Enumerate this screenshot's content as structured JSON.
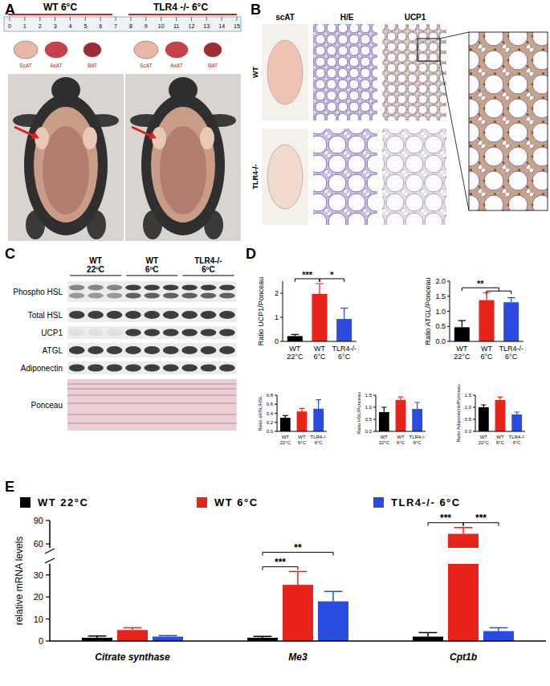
{
  "figure": {
    "panel_labels": [
      "A",
      "B",
      "C",
      "D",
      "E"
    ]
  },
  "panel_a": {
    "headers": [
      "WT 6°C",
      "TLR4 -/- 6°C"
    ],
    "ruler": [
      0,
      1,
      2,
      3,
      4,
      5,
      6,
      7,
      8,
      9,
      10,
      11,
      12,
      13,
      14,
      15
    ],
    "tissues": [
      "ScAT",
      "AxAT",
      "BAT"
    ]
  },
  "panel_b": {
    "columns": [
      "scAT",
      "H/E",
      "UCP1"
    ],
    "rows": [
      "WT",
      "TLR4-/-"
    ]
  },
  "panel_c": {
    "groups": [
      "WT 22ºC",
      "WT 6ºC",
      "TLR4-/- 6ºC"
    ],
    "rows": [
      "Phospho HSL",
      "Total HSL",
      "UCP1",
      "ATGL",
      "Adiponectin",
      "Ponceau"
    ]
  },
  "chart_data": [
    {
      "type": "bar",
      "ylabel": "Ratio UCP1/Ponceau",
      "categories": [
        "WT 22°C",
        "WT 6°C",
        "TLR4-/- 6°C"
      ],
      "values": [
        0.22,
        1.97,
        0.93
      ],
      "errors": [
        0.07,
        0.43,
        0.45
      ],
      "colors": [
        "#000000",
        "#e8231a",
        "#2b4ce0"
      ],
      "ylim": [
        0,
        2.5
      ],
      "yticks": [
        0,
        1,
        2
      ],
      "annotations": [
        {
          "text": "***",
          "from": 0,
          "to": 1
        },
        {
          "text": "*",
          "from": 1,
          "to": 2
        }
      ]
    },
    {
      "type": "bar",
      "ylabel": "Ratio ATGL/Ponceau",
      "categories": [
        "WT 22°C",
        "WT 6°C",
        "TLR4-/- 6°C"
      ],
      "values": [
        0.47,
        1.37,
        1.3
      ],
      "errors": [
        0.22,
        0.25,
        0.15
      ],
      "colors": [
        "#000000",
        "#e8231a",
        "#2b4ce0"
      ],
      "ylim": [
        0,
        2
      ],
      "yticks": [
        {
          "value": 0,
          "label": "0.0"
        },
        {
          "value": 0.5,
          "label": "0.5"
        },
        {
          "value": 1,
          "label": "1.0"
        },
        {
          "value": 1.5,
          "label": "1.5"
        },
        {
          "value": 2,
          "label": "2.0"
        }
      ],
      "annotations": [
        {
          "text": "**",
          "from": 0,
          "to": [
            1,
            2
          ]
        }
      ]
    },
    {
      "type": "bar",
      "ylabel": "Ratio pHSL/HSL",
      "categories": [
        "WT 22°C",
        "WT 6°C",
        "TLR4-/- 6°C"
      ],
      "values": [
        0.3,
        0.44,
        0.5
      ],
      "errors": [
        0.05,
        0.07,
        0.2
      ],
      "colors": [
        "#000000",
        "#e8231a",
        "#2b4ce0"
      ],
      "ylim": [
        0,
        0.8
      ],
      "yticks": [
        {
          "value": 0,
          "label": "0.0"
        },
        {
          "value": 0.2,
          "label": "0.2"
        },
        {
          "value": 0.4,
          "label": "0.4"
        },
        {
          "value": 0.6,
          "label": "0.6"
        },
        {
          "value": 0.8,
          "label": "0.8"
        }
      ]
    },
    {
      "type": "bar",
      "ylabel": "Ratio HSL/Ponceau",
      "categories": [
        "WT 22°C",
        "WT 6°C",
        "TLR4-/- 6°C"
      ],
      "values": [
        0.8,
        1.3,
        0.93
      ],
      "errors": [
        0.2,
        0.13,
        0.27
      ],
      "colors": [
        "#000000",
        "#e8231a",
        "#2b4ce0"
      ],
      "ylim": [
        0,
        1.5
      ],
      "yticks": [
        {
          "value": 0,
          "label": "0.0"
        },
        {
          "value": 0.5,
          "label": "0.5"
        },
        {
          "value": 1,
          "label": "1.0"
        },
        {
          "value": 1.5,
          "label": "1.5"
        }
      ]
    },
    {
      "type": "bar",
      "ylabel": "Ratio Adiponectin/Ponceau",
      "categories": [
        "WT 22°C",
        "WT 6°C",
        "TLR4-/- 6°C"
      ],
      "values": [
        1.0,
        1.3,
        0.7
      ],
      "errors": [
        0.1,
        0.12,
        0.1
      ],
      "colors": [
        "#000000",
        "#e8231a",
        "#2b4ce0"
      ],
      "ylim": [
        0,
        1.5
      ],
      "yticks": [
        {
          "value": 0,
          "label": "0.0"
        },
        {
          "value": 0.5,
          "label": "0.5"
        },
        {
          "value": 1,
          "label": "1.0"
        },
        {
          "value": 1.5,
          "label": "1.5"
        }
      ]
    },
    {
      "type": "bar",
      "ylabel": "relative mRNA levels",
      "categories": [
        "Citrate synthase",
        "Me3",
        "Cpt1b"
      ],
      "series": [
        {
          "name": "WT 22°C",
          "color": "#000000",
          "values": [
            1.5,
            1.5,
            2
          ],
          "errors": [
            0.8,
            0.6,
            1.8
          ]
        },
        {
          "name": "WT 6°C",
          "color": "#e8231a",
          "values": [
            5,
            25.5,
            73
          ],
          "errors": [
            1,
            6,
            8
          ]
        },
        {
          "name": "TLR4-/- 6°C",
          "color": "#2b4ce0",
          "values": [
            2,
            18,
            4.5
          ],
          "errors": [
            0.5,
            4.5,
            1.5
          ]
        }
      ],
      "ylim": [
        0,
        90
      ],
      "yticks": [
        0,
        10,
        20,
        30,
        60,
        90
      ],
      "legend": "top",
      "annotations": [
        {
          "text": "***",
          "group": 1,
          "from": 0,
          "to": 1
        },
        {
          "text": "**",
          "group": 1,
          "from": 0,
          "to": 2
        },
        {
          "text": "***",
          "group": 2,
          "from": 0,
          "to": 1
        },
        {
          "text": "***",
          "group": 2,
          "from": 1,
          "to": 2
        }
      ]
    }
  ]
}
